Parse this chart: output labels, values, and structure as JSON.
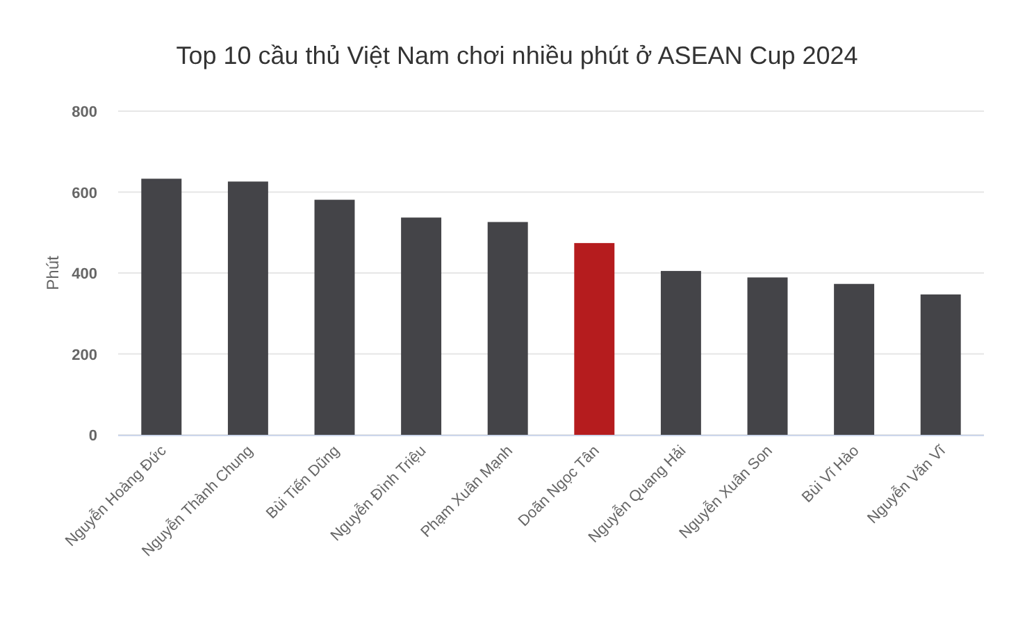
{
  "chart_data": {
    "type": "bar",
    "title": "Top 10 cầu thủ Việt Nam chơi nhiều phút ở ASEAN Cup 2024",
    "ylabel": "Phút",
    "categories": [
      "Nguyễn Hoàng Đức",
      "Nguyễn Thành Chung",
      "Bùi Tiến Dũng",
      "Nguyễn Đình Triệu",
      "Phạm Xuân Mạnh",
      "Doãn Ngọc Tân",
      "Nguyễn Quang Hải",
      "Nguyễn Xuân Son",
      "Bùi Vĩ Hào",
      "Nguyễn Văn Vĩ"
    ],
    "values": [
      633,
      626,
      581,
      537,
      526,
      474,
      405,
      389,
      373,
      347
    ],
    "colors": [
      "#444448",
      "#444448",
      "#444448",
      "#444448",
      "#444448",
      "#b51c1e",
      "#444448",
      "#444448",
      "#444448",
      "#444448"
    ],
    "ylim": [
      0,
      800
    ],
    "yticks": [
      0,
      200,
      400,
      600,
      800
    ],
    "grid": "y"
  }
}
